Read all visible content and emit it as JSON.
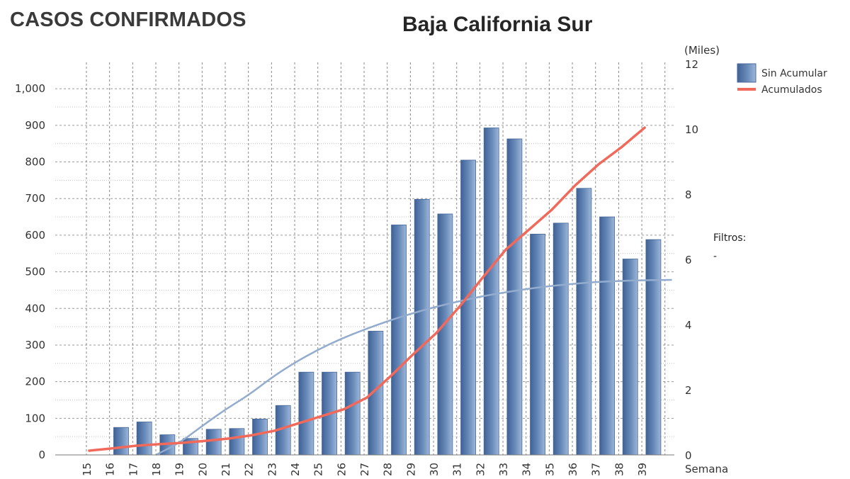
{
  "page": {
    "title": "CASOS CONFIRMADOS",
    "filters_label": "Filtros:",
    "filters_value": "-"
  },
  "chart_data": {
    "type": "bar",
    "title": "Baja California Sur",
    "xlabel": "Semana",
    "ylabel": "",
    "y2label": "(Miles)",
    "categories": [
      "15",
      "16",
      "17",
      "18",
      "19",
      "20",
      "21",
      "22",
      "23",
      "24",
      "25",
      "26",
      "27",
      "28",
      "29",
      "30",
      "31",
      "32",
      "33",
      "34",
      "35",
      "36",
      "37",
      "38",
      "39"
    ],
    "ylim": [
      0,
      1070
    ],
    "yticks": [
      0,
      100,
      200,
      300,
      400,
      500,
      600,
      700,
      800,
      900,
      1000
    ],
    "ytick_labels": [
      "0",
      "100",
      "200",
      "300",
      "400",
      "500",
      "600",
      "700",
      "800",
      "900",
      "1,000"
    ],
    "y2lim": [
      0,
      12
    ],
    "y2ticks": [
      0,
      2,
      4,
      6,
      8,
      10,
      12
    ],
    "grid": true,
    "legend_position": "top-right",
    "series": [
      {
        "name": "Sin Acumular",
        "type": "bar",
        "axis": "left",
        "color": "#5b7faf",
        "values": [
          0,
          75,
          90,
          55,
          45,
          70,
          72,
          98,
          135,
          226,
          226,
          226,
          338,
          628,
          698,
          658,
          805,
          893,
          863,
          603,
          633,
          728,
          650,
          535,
          588
        ]
      },
      {
        "name": "Acumulados",
        "type": "line",
        "axis": "right",
        "color": "#f0695a",
        "values": [
          0.13,
          0.2,
          0.28,
          0.33,
          0.37,
          0.43,
          0.5,
          0.6,
          0.74,
          0.96,
          1.18,
          1.4,
          1.76,
          2.4,
          3.09,
          3.74,
          4.55,
          5.44,
          6.3,
          6.91,
          7.53,
          8.27,
          8.91,
          9.44,
          10.04
        ]
      }
    ],
    "trendline": {
      "axis": "left",
      "color": "#93acce",
      "points": [
        [
          18,
          0
        ],
        [
          19,
          32
        ],
        [
          20,
          79
        ],
        [
          21,
          124
        ],
        [
          22,
          163
        ],
        [
          23,
          211
        ],
        [
          24,
          252
        ],
        [
          25,
          287
        ],
        [
          26,
          317
        ],
        [
          27,
          342
        ],
        [
          28,
          365
        ],
        [
          29,
          385
        ],
        [
          30,
          403
        ],
        [
          31,
          418
        ],
        [
          32,
          432
        ],
        [
          33,
          443
        ],
        [
          34,
          453
        ],
        [
          35,
          461
        ],
        [
          36,
          467
        ],
        [
          37,
          472
        ],
        [
          38,
          475
        ],
        [
          39,
          477
        ],
        [
          40.3,
          478
        ]
      ]
    }
  }
}
